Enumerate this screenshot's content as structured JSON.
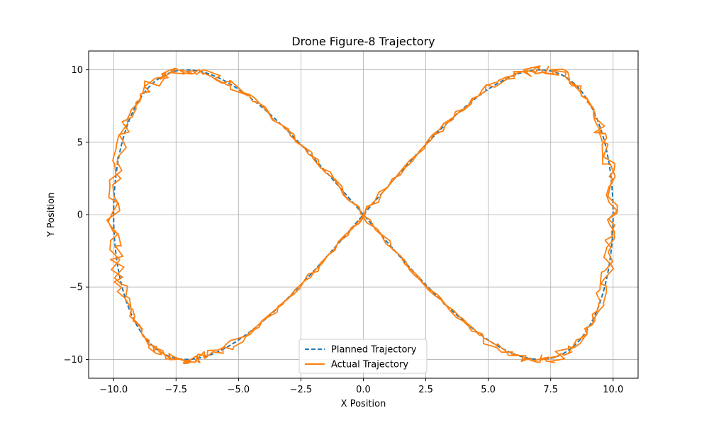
{
  "chart_data": {
    "type": "line",
    "title": "Drone Figure-8 Trajectory",
    "xlabel": "X Position",
    "ylabel": "Y Position",
    "xlim": [
      -11.0,
      11.0
    ],
    "ylim": [
      -11.3,
      11.3
    ],
    "grid": true,
    "legend_position": "lower-center",
    "xticks": [
      -10.0,
      -7.5,
      -5.0,
      -2.5,
      0.0,
      2.5,
      5.0,
      7.5,
      10.0
    ],
    "xtick_labels": [
      "−10.0",
      "−7.5",
      "−5.0",
      "−2.5",
      "0.0",
      "2.5",
      "5.0",
      "7.5",
      "10.0"
    ],
    "yticks": [
      -10,
      -5,
      0,
      5,
      10
    ],
    "ytick_labels": [
      "−10",
      "−5",
      "0",
      "5",
      "10"
    ],
    "series": [
      {
        "name": "Planned Trajectory",
        "color": "#1f77b4",
        "style": "dashed",
        "param": "x = 10 sin(t), y = 10 sin(t) cos(t) · 2, t in [0, 2π]",
        "x": [
          0.0,
          2.59,
          5.0,
          7.07,
          8.66,
          9.66,
          10.0,
          9.66,
          8.66,
          7.07,
          5.0,
          2.59,
          0.0,
          -2.59,
          -5.0,
          -7.07,
          -8.66,
          -9.66,
          -10.0,
          -9.66,
          -8.66,
          -7.07,
          -5.0,
          -2.59,
          0.0
        ],
        "y": [
          0.0,
          5.0,
          8.66,
          10.0,
          8.66,
          5.0,
          0.0,
          -5.0,
          -8.66,
          -10.0,
          -8.66,
          -5.0,
          0.0,
          5.0,
          8.66,
          10.0,
          8.66,
          5.0,
          0.0,
          -5.0,
          -8.66,
          -10.0,
          -8.66,
          -5.0,
          0.0
        ]
      },
      {
        "name": "Actual Trajectory",
        "color": "#ff7f0e",
        "style": "solid",
        "x": [
          0.0,
          1.1,
          2.59,
          3.9,
          5.0,
          6.1,
          7.07,
          7.5,
          8.66,
          9.2,
          9.66,
          10.0,
          9.9,
          10.0,
          9.66,
          9.2,
          8.66,
          7.8,
          7.07,
          6.0,
          5.0,
          3.8,
          2.59,
          1.0,
          0.0,
          -1.2,
          -2.59,
          -3.9,
          -5.0,
          -6.2,
          -6.6,
          -7.3,
          -8.66,
          -9.2,
          -9.66,
          -10.0,
          -9.9,
          -10.0,
          -9.66,
          -9.2,
          -8.66,
          -7.5,
          -7.07,
          -6.0,
          -5.0,
          -4.0,
          -2.59,
          -1.0,
          0.0
        ],
        "y": [
          0.0,
          2.2,
          5.0,
          6.9,
          8.66,
          9.4,
          10.0,
          10.3,
          8.66,
          7.3,
          5.0,
          3.4,
          0.0,
          -2.4,
          -5.0,
          -7.2,
          -8.66,
          -9.7,
          -10.0,
          -9.7,
          -8.66,
          -7.0,
          -5.0,
          -2.0,
          0.0,
          2.4,
          5.0,
          6.8,
          8.66,
          9.6,
          10.1,
          10.3,
          8.66,
          7.4,
          5.0,
          3.6,
          0.0,
          -2.5,
          -5.0,
          -7.1,
          -8.66,
          -9.6,
          -10.0,
          -10.2,
          -8.66,
          -7.0,
          -5.0,
          -1.8,
          0.0
        ]
      }
    ]
  }
}
